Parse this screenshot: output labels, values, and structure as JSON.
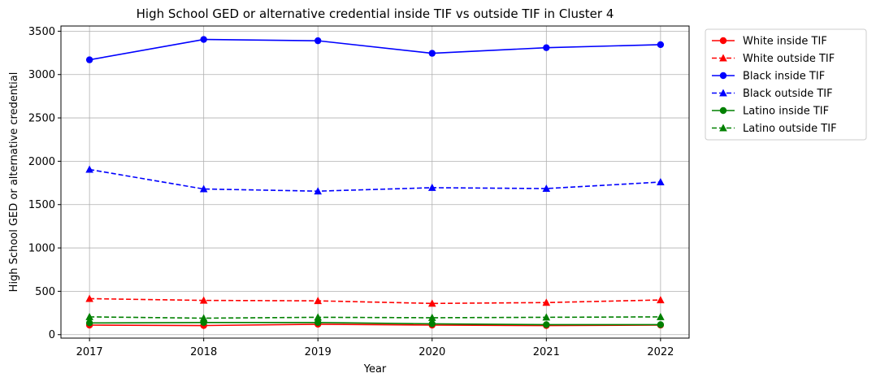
{
  "chart_data": {
    "type": "line",
    "title": "High School GED or alternative credential inside TIF vs outside TIF in Cluster 4",
    "xlabel": "Year",
    "ylabel": "High School GED or alternative credential",
    "x": [
      2017,
      2018,
      2019,
      2020,
      2021,
      2022
    ],
    "xlim": [
      2016.75,
      2022.25
    ],
    "ylim": [
      -40,
      3560
    ],
    "yticks": [
      0,
      500,
      1000,
      1500,
      2000,
      2500,
      3000,
      3500
    ],
    "grid": true,
    "legend_position": "outside-top-right",
    "series": [
      {
        "name": "White inside TIF",
        "color": "#ff0000",
        "dashed": false,
        "marker": "circle",
        "values": [
          110,
          105,
          120,
          110,
          105,
          110
        ]
      },
      {
        "name": "White outside TIF",
        "color": "#ff0000",
        "dashed": true,
        "marker": "triangle",
        "values": [
          415,
          395,
          390,
          360,
          370,
          400
        ]
      },
      {
        "name": "Black inside TIF",
        "color": "#0000ff",
        "dashed": false,
        "marker": "circle",
        "values": [
          3170,
          3405,
          3390,
          3245,
          3310,
          3345
        ]
      },
      {
        "name": "Black outside TIF",
        "color": "#0000ff",
        "dashed": true,
        "marker": "triangle",
        "values": [
          1905,
          1680,
          1655,
          1695,
          1685,
          1760
        ]
      },
      {
        "name": "Latino inside TIF",
        "color": "#008000",
        "dashed": false,
        "marker": "circle",
        "values": [
          135,
          140,
          140,
          125,
          115,
          115
        ]
      },
      {
        "name": "Latino outside TIF",
        "color": "#008000",
        "dashed": true,
        "marker": "triangle",
        "values": [
          205,
          190,
          200,
          195,
          200,
          205
        ]
      }
    ]
  }
}
